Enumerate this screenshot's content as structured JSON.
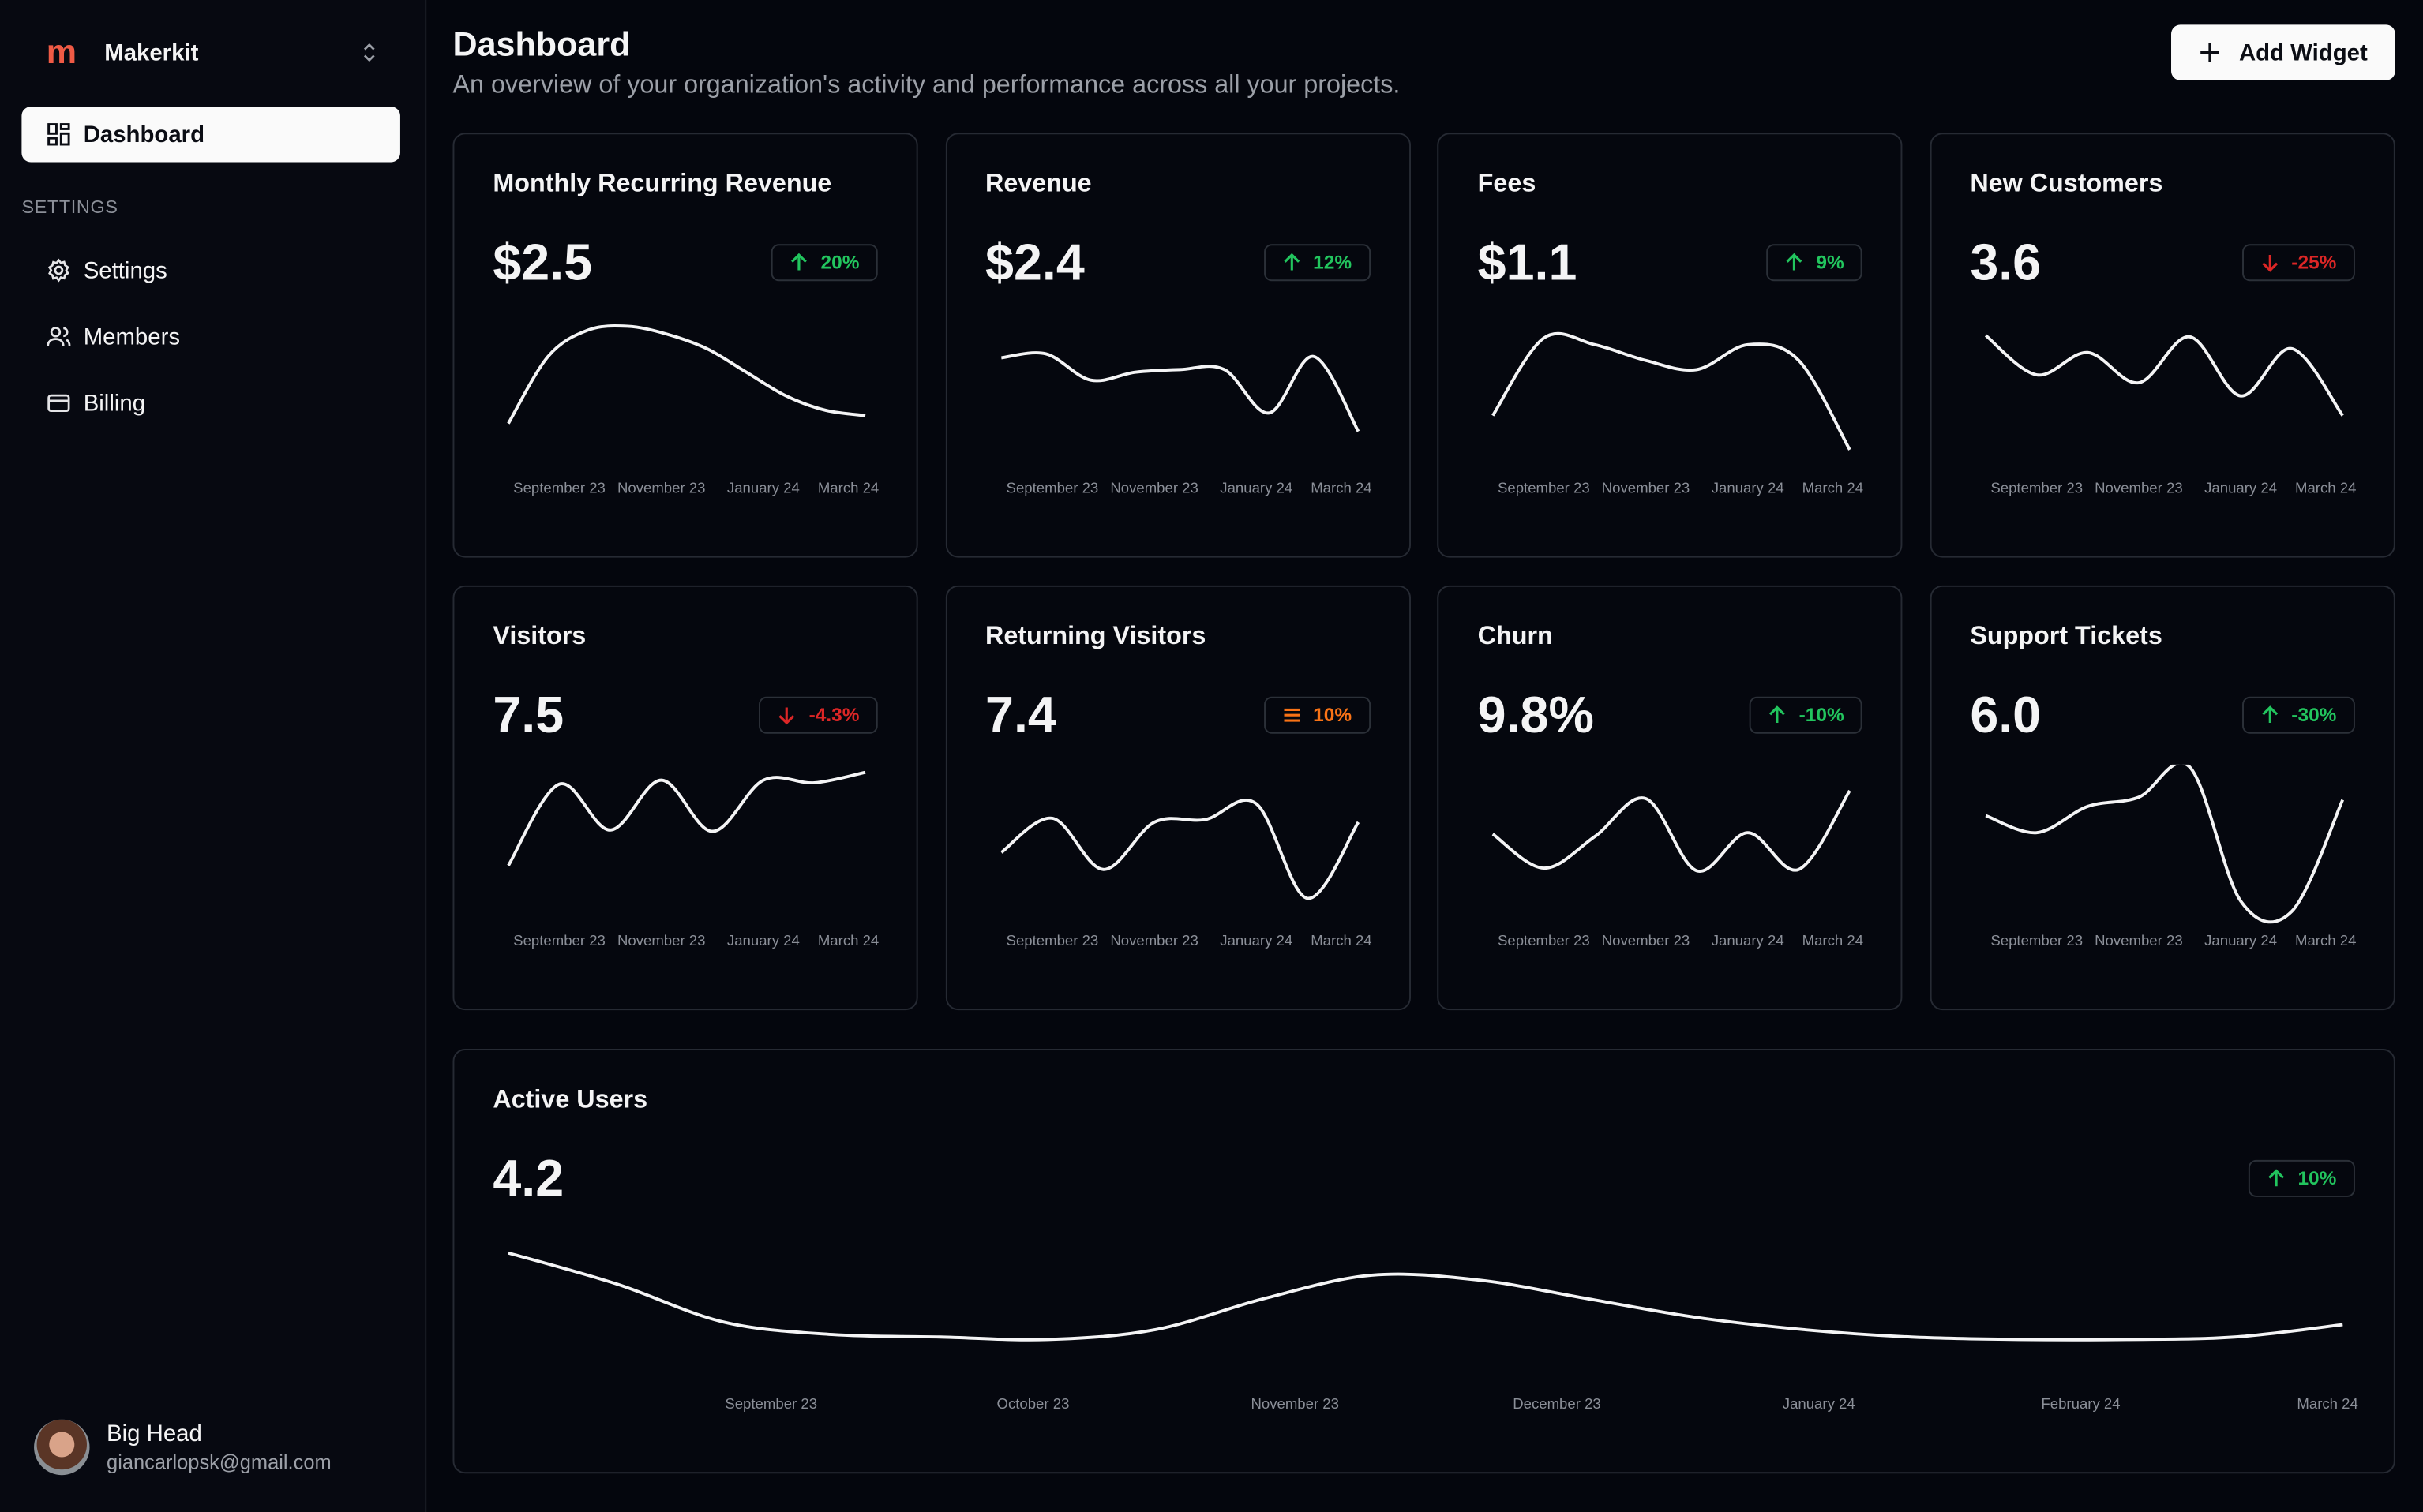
{
  "sidebar": {
    "brand": "Makerkit",
    "logo": "m",
    "nav": [
      "Dashboard"
    ],
    "section": "SETTINGS",
    "settings_nav": [
      "Settings",
      "Members",
      "Billing"
    ],
    "user": {
      "name": "Big Head",
      "email": "giancarlopsk@gmail.com"
    }
  },
  "header": {
    "title": "Dashboard",
    "subtitle": "An overview of your organization's activity and performance across all your projects.",
    "button": "Add Widget"
  },
  "cards": [
    {
      "title": "Monthly Recurring Revenue",
      "value": "$2.5",
      "change": "20%",
      "trend": "up",
      "chart": {
        "type": "line",
        "x_labels": [
          "September 23",
          "November 23",
          "January 24",
          "March 24"
        ],
        "values": [
          21,
          72,
          92,
          95,
          89,
          78,
          60,
          42,
          31,
          27
        ]
      }
    },
    {
      "title": "Revenue",
      "value": "$2.4",
      "change": "12%",
      "trend": "up",
      "chart": {
        "type": "line",
        "x_labels": [
          "September 23",
          "November 23",
          "January 24",
          "March 24"
        ],
        "values": [
          71,
          74,
          54,
          60,
          62,
          62,
          29,
          72,
          15
        ]
      }
    },
    {
      "title": "Fees",
      "value": "$1.1",
      "change": "9%",
      "trend": "up",
      "chart": {
        "type": "line",
        "x_labels": [
          "September 23",
          "November 23",
          "January 24",
          "March 24"
        ],
        "values": [
          27,
          86,
          81,
          69,
          62,
          81,
          69,
          1
        ]
      }
    },
    {
      "title": "New Customers",
      "value": "3.6",
      "change": "-25%",
      "trend": "down",
      "chart": {
        "type": "line",
        "x_labels": [
          "September 23",
          "November 23",
          "January 24",
          "March 24"
        ],
        "values": [
          88,
          58,
          75,
          52,
          87,
          42,
          78,
          27
        ]
      }
    },
    {
      "title": "Visitors",
      "value": "7.5",
      "change": "-4.3%",
      "trend": "down",
      "chart": {
        "type": "line",
        "x_labels": [
          "September 23",
          "November 23",
          "January 24",
          "March 24"
        ],
        "values": [
          29,
          91,
          56,
          94,
          55,
          94,
          92,
          100
        ]
      }
    },
    {
      "title": "Returning Visitors",
      "value": "7.4",
      "change": "10%",
      "trend": "flat",
      "chart": {
        "type": "line",
        "x_labels": [
          "September 23",
          "November 23",
          "January 24",
          "March 24"
        ],
        "values": [
          39,
          65,
          26,
          62,
          64,
          76,
          4,
          62
        ]
      }
    },
    {
      "title": "Churn",
      "value": "9.8%",
      "change": "-10%",
      "trend": "up",
      "chart": {
        "type": "line",
        "x_labels": [
          "September 23",
          "November 23",
          "January 24",
          "March 24"
        ],
        "values": [
          53,
          27,
          51,
          80,
          25,
          54,
          26,
          86
        ]
      }
    },
    {
      "title": "Support Tickets",
      "value": "6.0",
      "change": "-30%",
      "trend": "up",
      "chart": {
        "type": "line",
        "x_labels": [
          "September 23",
          "November 23",
          "January 24",
          "March 24"
        ],
        "values": [
          67,
          54,
          74,
          81,
          104,
          2,
          -6,
          79
        ]
      }
    }
  ],
  "featured_card": {
    "title": "Active Users",
    "value": "4.2",
    "change": "10%",
    "trend": "up",
    "chart": {
      "type": "line",
      "x_labels": [
        "September 23",
        "October 23",
        "November 23",
        "December 23",
        "January 24",
        "February 24",
        "March 24"
      ],
      "values": [
        86,
        61,
        30,
        20,
        18,
        16,
        24,
        49,
        68,
        64,
        49,
        34,
        24,
        18,
        16,
        16,
        18,
        28
      ]
    }
  }
}
